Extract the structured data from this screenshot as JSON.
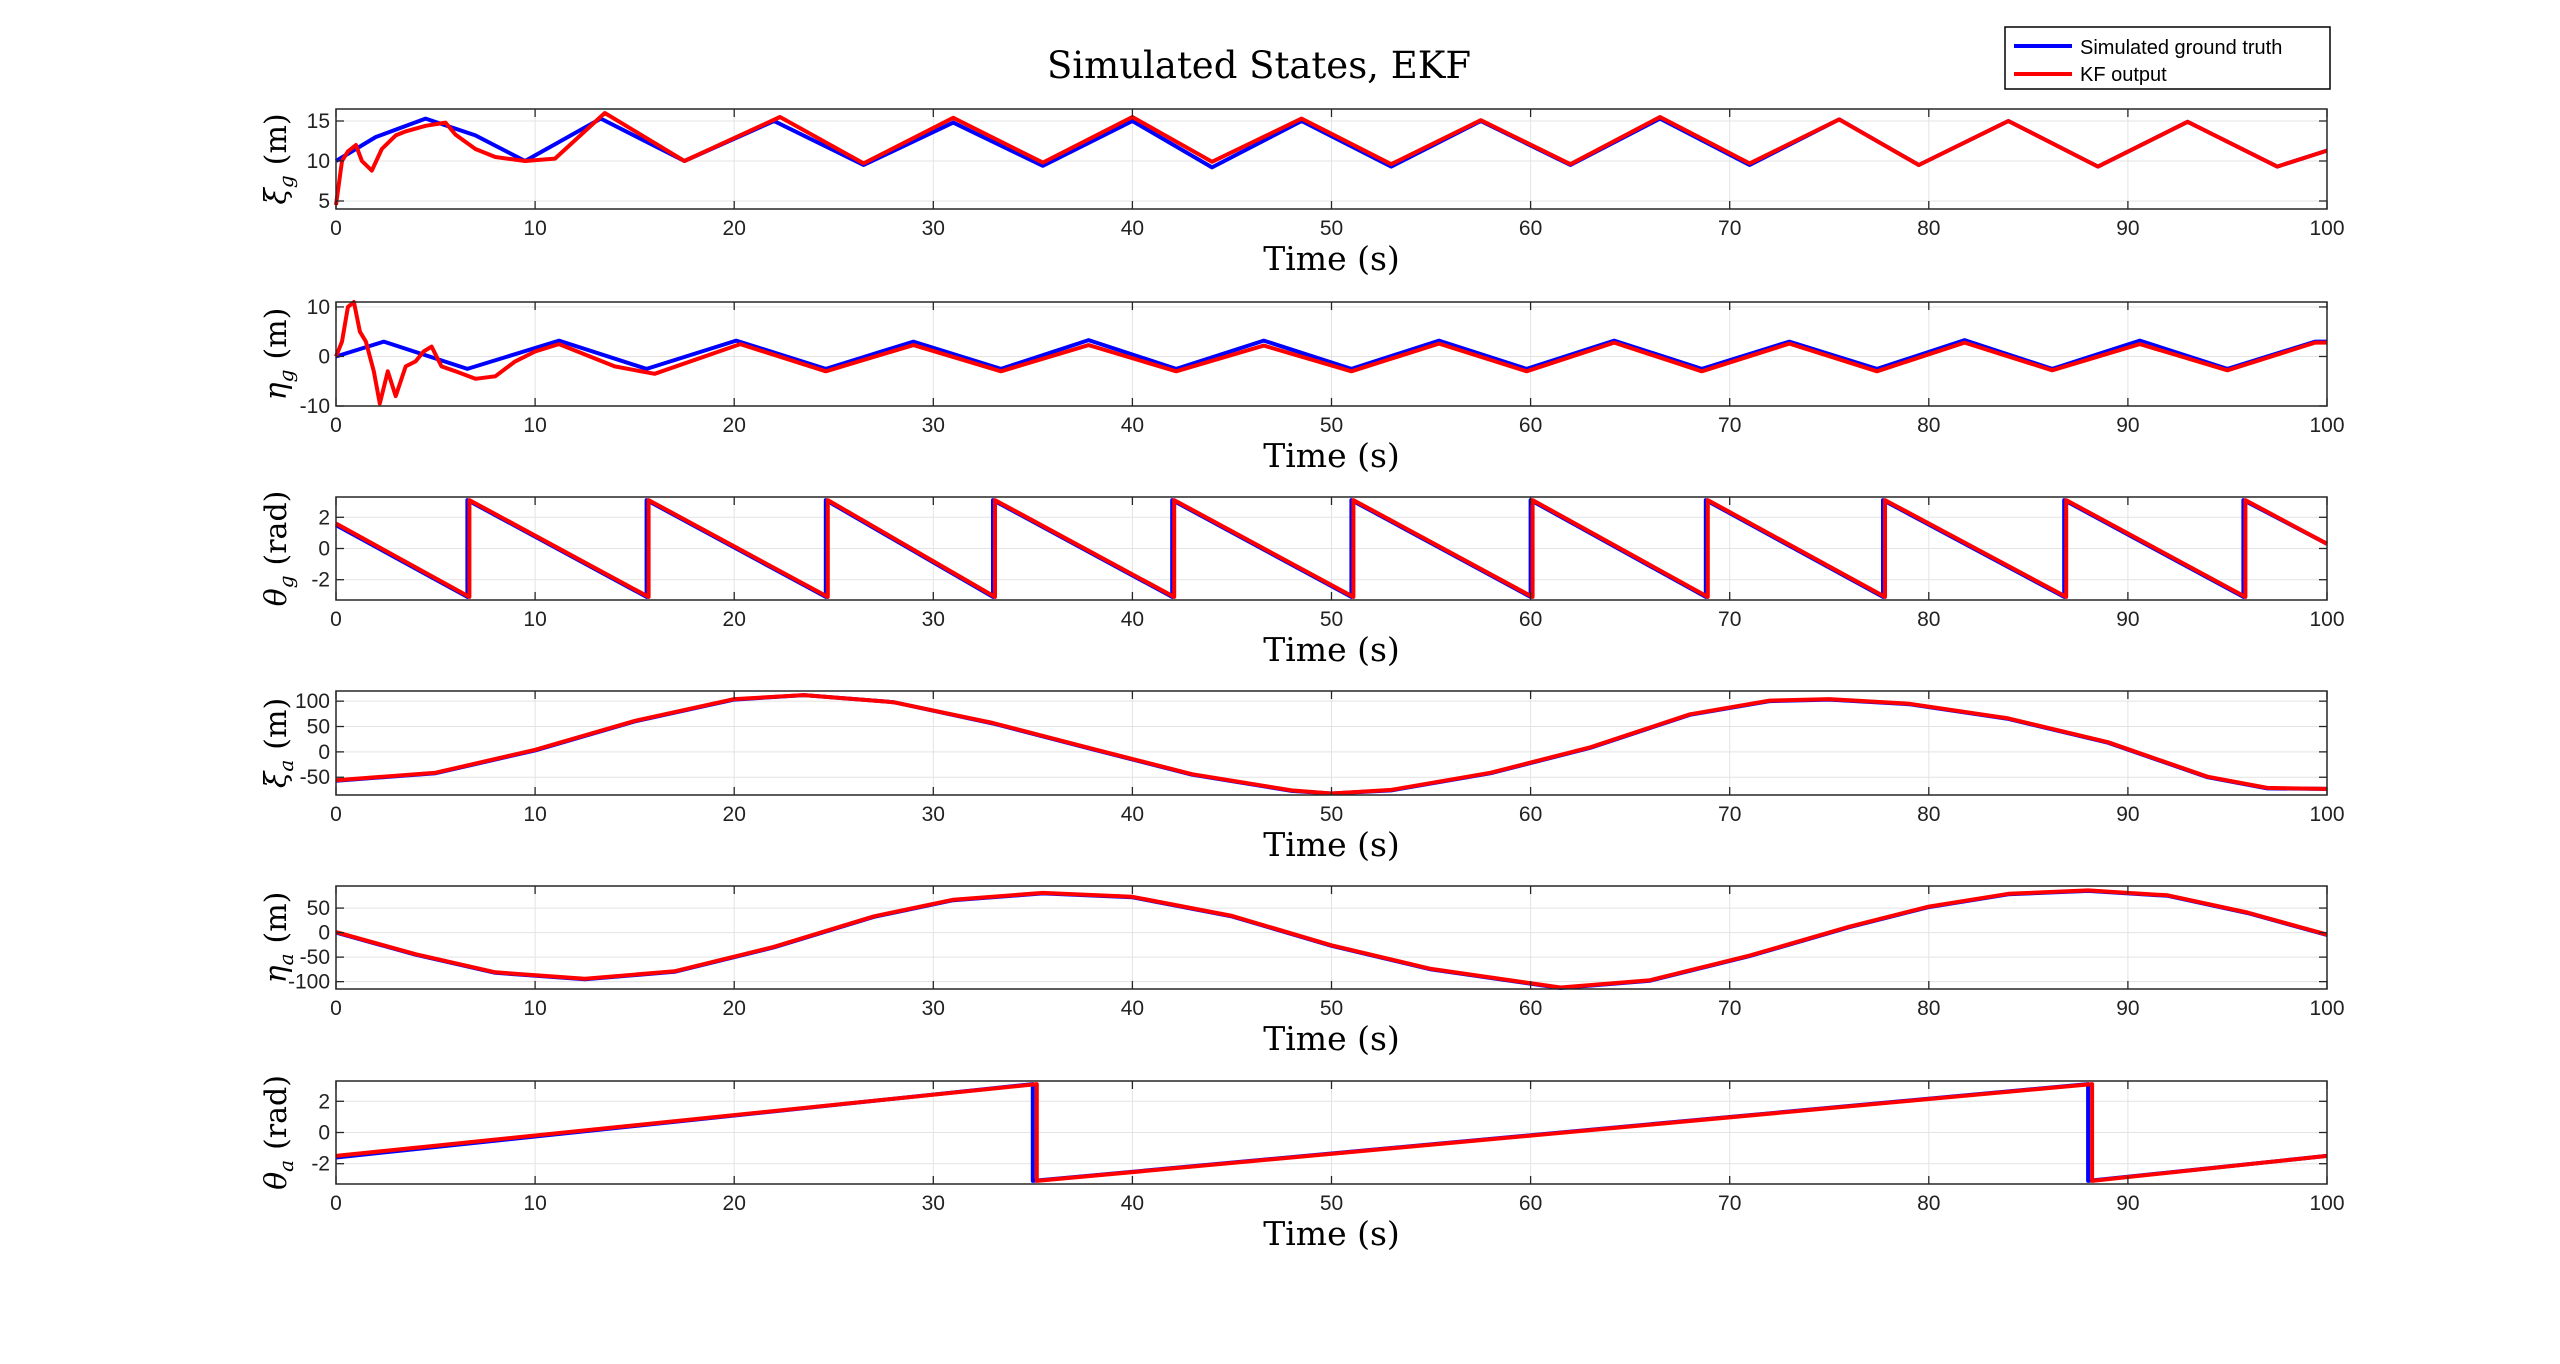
{
  "figure": {
    "title": "Simulated States, EKF",
    "legend": {
      "placement": "top-right",
      "entries": [
        {
          "name": "Simulated ground truth",
          "color": "#0000ff"
        },
        {
          "name": "KF output",
          "color": "#ff0000"
        }
      ]
    }
  },
  "chart_data": [
    {
      "type": "line",
      "ylabel": "ξg (m)",
      "ylabel_main": "ξ",
      "ylabel_sub": "g",
      "ylabel_unit": "(m)",
      "xlabel": "Time (s)",
      "xlim": [
        0,
        100
      ],
      "ylim": [
        4,
        16.5
      ],
      "xticks": [
        0,
        10,
        20,
        30,
        40,
        50,
        60,
        70,
        80,
        90,
        100
      ],
      "yticks": [
        5,
        10,
        15
      ],
      "grid": true,
      "series": [
        {
          "name": "Simulated ground truth",
          "color": "#0000ff",
          "x": [
            0,
            2,
            4.5,
            7,
            9.5,
            13.3,
            17.5,
            22,
            26.5,
            31,
            35.5,
            40,
            44,
            48.5,
            53,
            57.5,
            62,
            66.5,
            71,
            75.5,
            79.5,
            84,
            88.5,
            93,
            97.5,
            100
          ],
          "y": [
            10,
            13,
            15.3,
            13.2,
            10,
            15.3,
            10,
            15,
            9.5,
            14.8,
            9.4,
            15,
            9.2,
            15,
            9.3,
            15,
            9.5,
            15.3,
            9.5,
            15.2,
            9.5,
            15,
            9.3,
            14.9,
            9.3,
            11.3
          ]
        },
        {
          "name": "KF output",
          "color": "#ff0000",
          "x": [
            0,
            0.3,
            0.6,
            1,
            1.3,
            1.8,
            2.3,
            3,
            3.5,
            4.5,
            5.5,
            6,
            7,
            8,
            9.5,
            11,
            13.5,
            17.5,
            22.3,
            26.5,
            31,
            35.5,
            40,
            44,
            48.5,
            53,
            57.5,
            62,
            66.5,
            71,
            75.5,
            79.5,
            84,
            88.5,
            93,
            97.5,
            100
          ],
          "y": [
            4.5,
            10,
            11.2,
            12,
            10,
            8.8,
            11.5,
            13.2,
            13.7,
            14.4,
            14.8,
            13.3,
            11.5,
            10.5,
            10,
            10.3,
            16,
            10,
            15.5,
            9.7,
            15.4,
            9.8,
            15.5,
            9.9,
            15.3,
            9.6,
            15.1,
            9.6,
            15.5,
            9.7,
            15.2,
            9.5,
            15,
            9.3,
            14.9,
            9.3,
            11.3
          ]
        }
      ]
    },
    {
      "type": "line",
      "ylabel": "ηg (m)",
      "ylabel_main": "η",
      "ylabel_sub": "g",
      "ylabel_unit": "(m)",
      "xlabel": "Time (s)",
      "xlim": [
        0,
        100
      ],
      "ylim": [
        -10,
        11
      ],
      "xticks": [
        0,
        10,
        20,
        30,
        40,
        50,
        60,
        70,
        80,
        90,
        100
      ],
      "yticks": [
        -10,
        0,
        10
      ],
      "grid": true,
      "series": [
        {
          "name": "Simulated ground truth",
          "color": "#0000ff",
          "x": [
            0,
            2.4,
            6.6,
            11.2,
            15.6,
            20.1,
            24.6,
            29,
            33.4,
            37.8,
            42.2,
            46.6,
            51,
            55.4,
            59.8,
            64.2,
            68.6,
            73,
            77.4,
            81.8,
            86.2,
            90.6,
            95,
            99.4,
            100
          ],
          "y": [
            0,
            3,
            -2.5,
            3.2,
            -2.5,
            3.2,
            -2.5,
            3,
            -2.5,
            3.3,
            -2.5,
            3.2,
            -2.5,
            3.2,
            -2.5,
            3.2,
            -2.5,
            3,
            -2.5,
            3.3,
            -2.5,
            3.2,
            -2.5,
            3,
            3
          ]
        },
        {
          "name": "KF output",
          "color": "#ff0000",
          "x": [
            0,
            0.3,
            0.6,
            0.9,
            1.2,
            1.5,
            1.9,
            2.2,
            2.6,
            3,
            3.5,
            4,
            4.4,
            4.8,
            5.3,
            6,
            7,
            8,
            9,
            10,
            11.2,
            14,
            16,
            20.3,
            24.6,
            29,
            33.4,
            37.8,
            42.2,
            46.6,
            51,
            55.4,
            59.8,
            64.2,
            68.6,
            73,
            77.4,
            81.8,
            86.2,
            90.6,
            95,
            99.4,
            100
          ],
          "y": [
            0,
            3,
            10,
            11,
            5,
            3,
            -3,
            -9.5,
            -3,
            -8,
            -2,
            -1,
            1,
            2,
            -2,
            -3,
            -4.5,
            -4,
            -1,
            1,
            2.5,
            -2,
            -3.5,
            2.5,
            -3,
            2.3,
            -3,
            2.3,
            -3,
            2.2,
            -3,
            2.6,
            -3,
            2.8,
            -3,
            2.6,
            -3,
            2.8,
            -2.8,
            2.5,
            -2.8,
            2.8,
            2.8
          ]
        }
      ]
    },
    {
      "type": "line",
      "ylabel": "θg (rad)",
      "ylabel_main": "θ",
      "ylabel_sub": "g",
      "ylabel_unit": "(rad)",
      "xlabel": "Time (s)",
      "xlim": [
        0,
        100
      ],
      "ylim": [
        -3.3,
        3.3
      ],
      "xticks": [
        0,
        10,
        20,
        30,
        40,
        50,
        60,
        70,
        80,
        90,
        100
      ],
      "yticks": [
        -2,
        0,
        2
      ],
      "grid": true,
      "wraps": [
        6.6,
        15.6,
        24.6,
        33,
        42,
        51,
        60,
        68.8,
        77.7,
        86.8,
        95.8
      ],
      "series": [
        {
          "name": "Simulated ground truth",
          "color": "#0000ff",
          "x": [
            0,
            6.6,
            6.6,
            15.6,
            15.6,
            24.6,
            24.6,
            33,
            33,
            42,
            42,
            51,
            51,
            60,
            60,
            68.8,
            68.8,
            77.7,
            77.7,
            86.8,
            86.8,
            95.8,
            95.8,
            100
          ],
          "y": [
            1.5,
            -3.1,
            3.1,
            -3.1,
            3.1,
            -3.1,
            3.1,
            -3.1,
            3.1,
            -3.1,
            3.1,
            -3.1,
            3.1,
            -3.1,
            3.1,
            -3.1,
            3.1,
            -3.1,
            3.1,
            -3.1,
            3.1,
            -3.1,
            3.1,
            0.3
          ]
        },
        {
          "name": "KF output",
          "color": "#ff0000",
          "x": [
            0,
            6.7,
            6.7,
            15.7,
            15.7,
            24.7,
            24.7,
            33.1,
            33.1,
            42.1,
            42.1,
            51.1,
            51.1,
            60.1,
            60.1,
            68.9,
            68.9,
            77.8,
            77.8,
            86.9,
            86.9,
            95.9,
            95.9,
            100
          ],
          "y": [
            1.6,
            -3.1,
            3.1,
            -3.1,
            3.1,
            -3.1,
            3.1,
            -3.1,
            3.1,
            -3.1,
            3.1,
            -3.1,
            3.1,
            -3.1,
            3.1,
            -3.1,
            3.1,
            -3.1,
            3.1,
            -3.1,
            3.1,
            -3.1,
            3.1,
            0.3
          ]
        }
      ]
    },
    {
      "type": "line",
      "ylabel": "ξa (m)",
      "ylabel_main": "ξ",
      "ylabel_sub": "a",
      "ylabel_unit": "(m)",
      "xlabel": "Time (s)",
      "xlim": [
        0,
        100
      ],
      "ylim": [
        -85,
        120
      ],
      "xticks": [
        0,
        10,
        20,
        30,
        40,
        50,
        60,
        70,
        80,
        90,
        100
      ],
      "yticks": [
        -50,
        0,
        50,
        100
      ],
      "grid": true,
      "series": [
        {
          "name": "Simulated ground truth",
          "color": "#0000ff",
          "x": [
            0,
            5,
            10,
            15,
            20,
            23.5,
            28,
            33,
            38,
            43,
            48,
            50,
            53,
            58,
            63,
            68,
            72,
            75,
            79,
            84,
            89,
            94,
            97,
            100
          ],
          "y": [
            -57,
            -42,
            3,
            60,
            103,
            112,
            98,
            56,
            5,
            -45,
            -77,
            -82,
            -76,
            -42,
            8,
            73,
            100,
            103,
            94,
            65,
            18,
            -50,
            -72,
            -73
          ]
        },
        {
          "name": "KF output",
          "color": "#ff0000",
          "x": [
            0,
            5,
            10,
            15,
            20,
            23.5,
            28,
            33,
            38,
            43,
            48,
            50,
            53,
            58,
            63,
            68,
            72,
            75,
            79,
            84,
            89,
            94,
            97,
            100
          ],
          "y": [
            -56,
            -41,
            4,
            61,
            104,
            112,
            98,
            57,
            6,
            -44,
            -76,
            -82,
            -75,
            -41,
            9,
            74,
            101,
            104,
            95,
            66,
            19,
            -49,
            -71,
            -73
          ]
        }
      ]
    },
    {
      "type": "line",
      "ylabel": "ηa (m)",
      "ylabel_main": "η",
      "ylabel_sub": "a",
      "ylabel_unit": "(m)",
      "xlabel": "Time (s)",
      "xlim": [
        0,
        100
      ],
      "ylim": [
        -115,
        95
      ],
      "xticks": [
        0,
        10,
        20,
        30,
        40,
        50,
        60,
        70,
        80,
        90,
        100
      ],
      "yticks": [
        -100,
        -50,
        0,
        50
      ],
      "grid": true,
      "series": [
        {
          "name": "Simulated ground truth",
          "color": "#0000ff",
          "x": [
            0,
            4,
            8,
            12.5,
            17,
            22,
            27,
            31,
            35.5,
            40,
            45,
            50,
            55,
            61.5,
            66,
            71,
            76,
            80,
            84,
            88,
            92,
            96,
            100
          ],
          "y": [
            0,
            -45,
            -82,
            -95,
            -80,
            -30,
            32,
            66,
            80,
            72,
            33,
            -27,
            -75,
            -113,
            -98,
            -48,
            11,
            52,
            78,
            85,
            75,
            40,
            -5
          ]
        },
        {
          "name": "KF output",
          "color": "#ff0000",
          "x": [
            0,
            4,
            8,
            12.5,
            17,
            22,
            27,
            31,
            35.5,
            40,
            45,
            50,
            55,
            61.5,
            66,
            71,
            76,
            80,
            84,
            88,
            92,
            96,
            100
          ],
          "y": [
            1,
            -44,
            -81,
            -94,
            -79,
            -29,
            33,
            67,
            81,
            73,
            34,
            -26,
            -74,
            -112,
            -97,
            -47,
            12,
            53,
            79,
            86,
            76,
            41,
            -4
          ]
        }
      ]
    },
    {
      "type": "line",
      "ylabel": "θa (rad)",
      "ylabel_main": "θ",
      "ylabel_sub": "a",
      "ylabel_unit": "(rad)",
      "xlabel": "Time (s)",
      "xlim": [
        0,
        100
      ],
      "ylim": [
        -3.3,
        3.3
      ],
      "xticks": [
        0,
        10,
        20,
        30,
        40,
        50,
        60,
        70,
        80,
        90,
        100
      ],
      "yticks": [
        -2,
        0,
        2
      ],
      "grid": true,
      "series": [
        {
          "name": "Simulated ground truth",
          "color": "#0000ff",
          "x": [
            0,
            35,
            35,
            88,
            88,
            100
          ],
          "y": [
            -1.6,
            3.1,
            -3.1,
            3.1,
            -3.1,
            -1.5
          ]
        },
        {
          "name": "KF output",
          "color": "#ff0000",
          "x": [
            0,
            35.2,
            35.2,
            88.2,
            88.2,
            100
          ],
          "y": [
            -1.5,
            3.1,
            -3.1,
            3.1,
            -3.1,
            -1.5
          ]
        }
      ]
    }
  ]
}
